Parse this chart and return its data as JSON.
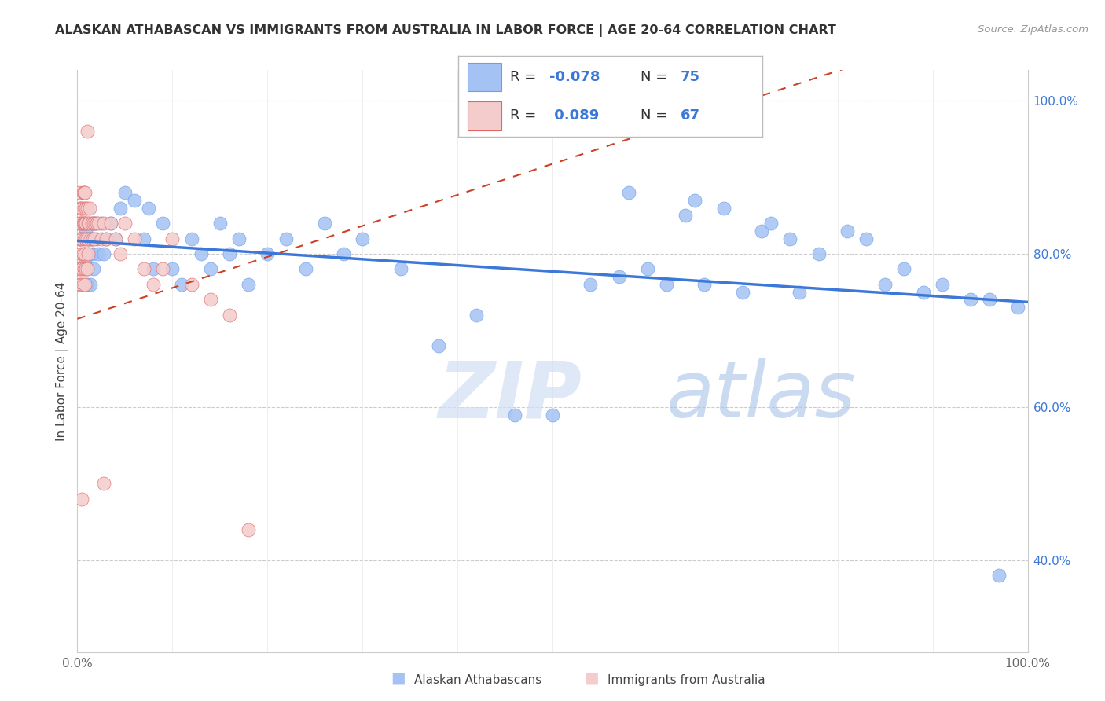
{
  "title": "ALASKAN ATHABASCAN VS IMMIGRANTS FROM AUSTRALIA IN LABOR FORCE | AGE 20-64 CORRELATION CHART",
  "source": "Source: ZipAtlas.com",
  "ylabel": "In Labor Force | Age 20-64",
  "legend_label1": "Alaskan Athabascans",
  "legend_label2": "Immigrants from Australia",
  "R1": -0.078,
  "N1": 75,
  "R2": 0.089,
  "N2": 67,
  "blue_color": "#a4c2f4",
  "pink_color": "#f4cccc",
  "blue_edge": "#6d9eeb",
  "pink_edge": "#e06666",
  "trend_blue": "#3c78d8",
  "trend_pink": "#cc4125",
  "watermark_zip": "ZIP",
  "watermark_atlas": "atlas",
  "blue_x": [
    0.003,
    0.005,
    0.007,
    0.008,
    0.009,
    0.01,
    0.01,
    0.011,
    0.012,
    0.013,
    0.014,
    0.015,
    0.015,
    0.016,
    0.017,
    0.018,
    0.02,
    0.022,
    0.025,
    0.028,
    0.03,
    0.035,
    0.04,
    0.045,
    0.05,
    0.06,
    0.07,
    0.075,
    0.08,
    0.09,
    0.1,
    0.11,
    0.12,
    0.13,
    0.14,
    0.15,
    0.16,
    0.17,
    0.18,
    0.2,
    0.22,
    0.24,
    0.26,
    0.28,
    0.3,
    0.34,
    0.38,
    0.42,
    0.46,
    0.5,
    0.54,
    0.57,
    0.58,
    0.6,
    0.62,
    0.64,
    0.65,
    0.66,
    0.68,
    0.7,
    0.72,
    0.73,
    0.75,
    0.76,
    0.78,
    0.81,
    0.83,
    0.85,
    0.87,
    0.89,
    0.91,
    0.94,
    0.96,
    0.97,
    0.99
  ],
  "blue_y": [
    0.82,
    0.84,
    0.8,
    0.79,
    0.83,
    0.78,
    0.76,
    0.82,
    0.8,
    0.82,
    0.76,
    0.84,
    0.82,
    0.8,
    0.78,
    0.84,
    0.82,
    0.8,
    0.84,
    0.8,
    0.82,
    0.84,
    0.82,
    0.86,
    0.88,
    0.87,
    0.82,
    0.86,
    0.78,
    0.84,
    0.78,
    0.76,
    0.82,
    0.8,
    0.78,
    0.84,
    0.8,
    0.82,
    0.76,
    0.8,
    0.82,
    0.78,
    0.84,
    0.8,
    0.82,
    0.78,
    0.68,
    0.72,
    0.59,
    0.59,
    0.76,
    0.77,
    0.88,
    0.78,
    0.76,
    0.85,
    0.87,
    0.76,
    0.86,
    0.75,
    0.83,
    0.84,
    0.82,
    0.75,
    0.8,
    0.83,
    0.82,
    0.76,
    0.78,
    0.75,
    0.76,
    0.74,
    0.74,
    0.38,
    0.73
  ],
  "pink_x": [
    0.001,
    0.001,
    0.002,
    0.002,
    0.002,
    0.003,
    0.003,
    0.003,
    0.003,
    0.004,
    0.004,
    0.004,
    0.004,
    0.005,
    0.005,
    0.005,
    0.006,
    0.006,
    0.006,
    0.006,
    0.007,
    0.007,
    0.007,
    0.007,
    0.007,
    0.008,
    0.008,
    0.008,
    0.008,
    0.009,
    0.009,
    0.009,
    0.009,
    0.01,
    0.01,
    0.01,
    0.01,
    0.011,
    0.011,
    0.012,
    0.013,
    0.014,
    0.015,
    0.016,
    0.017,
    0.018,
    0.019,
    0.02,
    0.022,
    0.025,
    0.028,
    0.03,
    0.035,
    0.04,
    0.045,
    0.05,
    0.06,
    0.07,
    0.08,
    0.09,
    0.1,
    0.12,
    0.14,
    0.16,
    0.18,
    0.005,
    0.028
  ],
  "pink_y": [
    0.84,
    0.78,
    0.88,
    0.82,
    0.76,
    0.86,
    0.82,
    0.78,
    0.84,
    0.86,
    0.8,
    0.76,
    0.84,
    0.86,
    0.82,
    0.78,
    0.88,
    0.84,
    0.8,
    0.76,
    0.88,
    0.84,
    0.82,
    0.78,
    0.86,
    0.88,
    0.84,
    0.8,
    0.76,
    0.86,
    0.82,
    0.78,
    0.84,
    0.86,
    0.82,
    0.78,
    0.96,
    0.84,
    0.8,
    0.84,
    0.86,
    0.82,
    0.84,
    0.82,
    0.84,
    0.82,
    0.84,
    0.84,
    0.84,
    0.82,
    0.84,
    0.82,
    0.84,
    0.82,
    0.8,
    0.84,
    0.82,
    0.78,
    0.76,
    0.78,
    0.82,
    0.76,
    0.74,
    0.72,
    0.44,
    0.48,
    0.5
  ]
}
